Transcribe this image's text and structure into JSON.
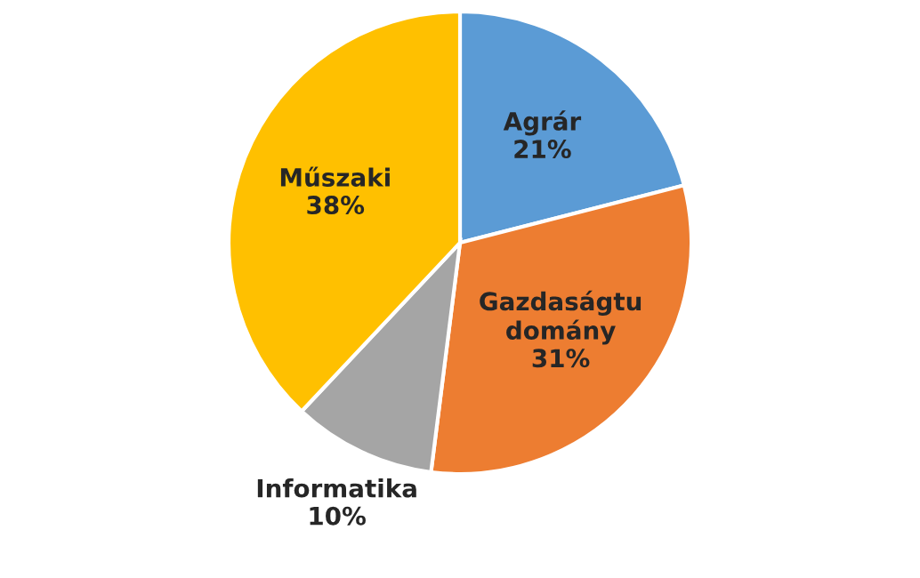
{
  "chart_data": {
    "type": "pie",
    "categories": [
      "Agrár",
      "Gazdaságtu\ndomány",
      "Informatika",
      "Műszaki"
    ],
    "values": [
      21,
      31,
      10,
      38
    ],
    "value_labels": [
      "21%",
      "31%",
      "10%",
      "38%"
    ],
    "colors": [
      "#5b9bd5",
      "#ed7d31",
      "#a5a5a5",
      "#ffc000"
    ]
  }
}
